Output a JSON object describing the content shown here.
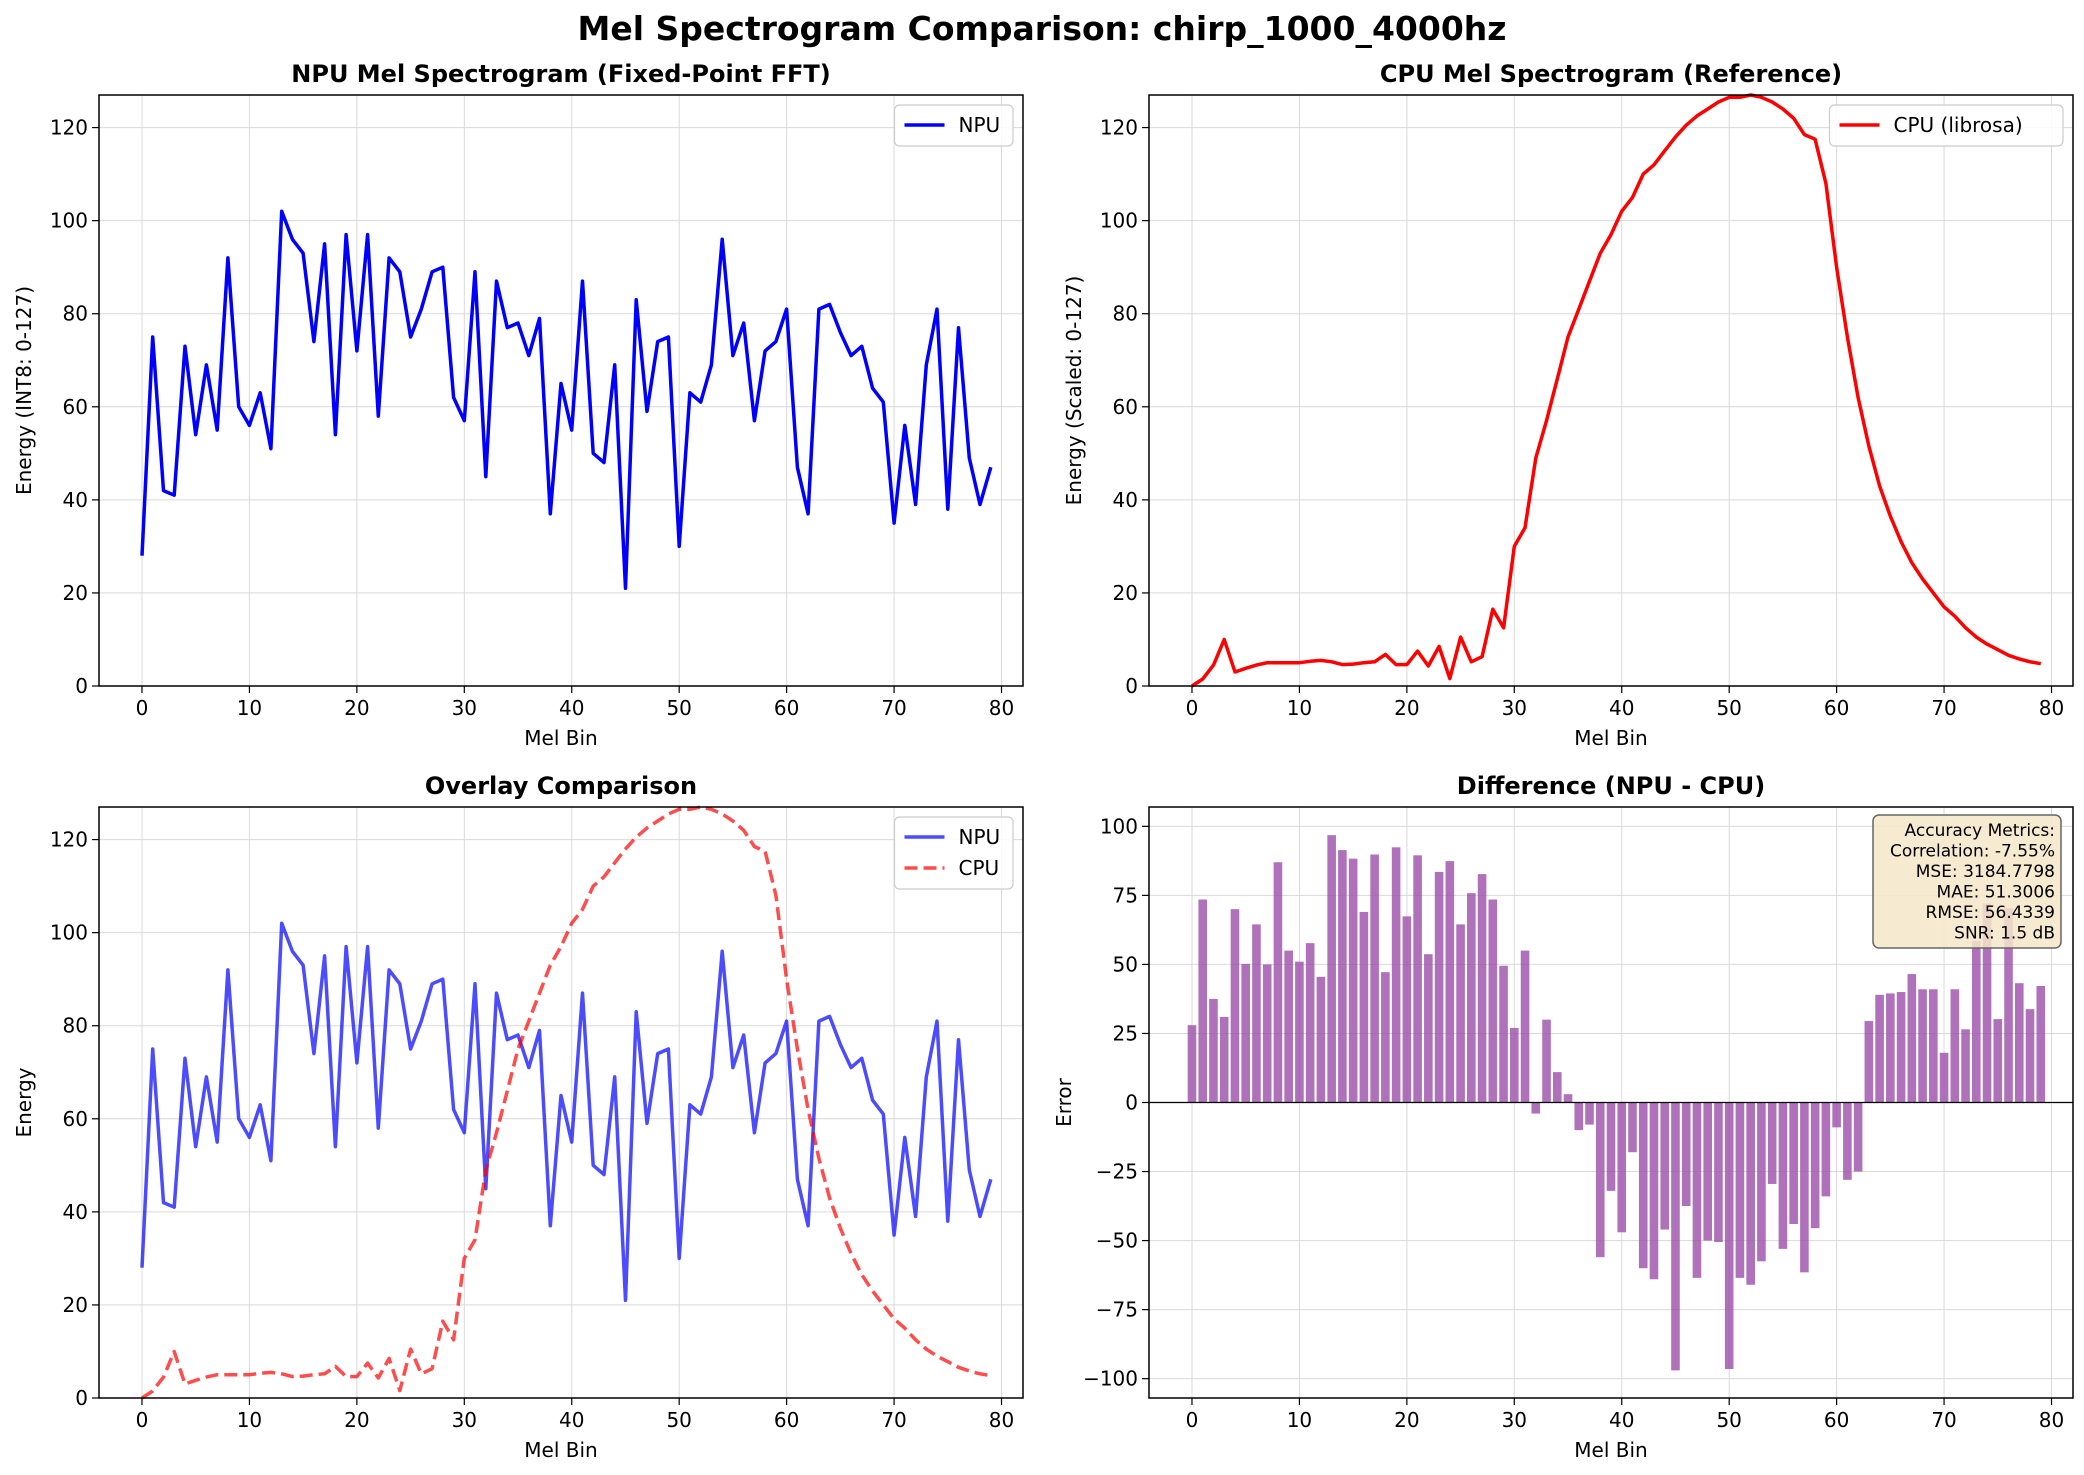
{
  "suptitle": "Mel Spectrogram Comparison: chirp_1000_4000hz",
  "colors": {
    "npu": "#0000ff",
    "cpu": "#ff0000",
    "bar": "#9b4da9",
    "grid": "#d9d9d9",
    "metrics_box": "#f5e6c8"
  },
  "chart_data": [
    {
      "type": "line",
      "title": "NPU Mel Spectrogram (Fixed-Point FFT)",
      "xlabel": "Mel Bin",
      "ylabel": "Energy (INT8: 0-127)",
      "xlim": [
        -4,
        82
      ],
      "ylim": [
        0,
        127
      ],
      "xticks": [
        0,
        10,
        20,
        30,
        40,
        50,
        60,
        70,
        80
      ],
      "yticks": [
        0,
        20,
        40,
        60,
        80,
        100,
        120
      ],
      "grid": true,
      "legend": "top-right",
      "series": [
        {
          "name": "NPU",
          "ref": "npu",
          "color": "#0000ff",
          "style": "solid",
          "alpha": 1
        }
      ]
    },
    {
      "type": "line",
      "title": "CPU Mel Spectrogram (Reference)",
      "xlabel": "Mel Bin",
      "ylabel": "Energy (Scaled: 0-127)",
      "xlim": [
        -4,
        82
      ],
      "ylim": [
        0,
        127
      ],
      "xticks": [
        0,
        10,
        20,
        30,
        40,
        50,
        60,
        70,
        80
      ],
      "yticks": [
        0,
        20,
        40,
        60,
        80,
        100,
        120
      ],
      "grid": true,
      "legend": "top-right",
      "series": [
        {
          "name": "CPU (librosa)",
          "ref": "cpu",
          "color": "#ff0000",
          "style": "solid",
          "alpha": 1
        }
      ]
    },
    {
      "type": "line",
      "title": "Overlay Comparison",
      "xlabel": "Mel Bin",
      "ylabel": "Energy",
      "xlim": [
        -4,
        82
      ],
      "ylim": [
        0,
        127
      ],
      "xticks": [
        0,
        10,
        20,
        30,
        40,
        50,
        60,
        70,
        80
      ],
      "yticks": [
        0,
        20,
        40,
        60,
        80,
        100,
        120
      ],
      "grid": true,
      "legend": "top-right",
      "series": [
        {
          "name": "NPU",
          "ref": "npu",
          "color": "#0000ff",
          "style": "solid",
          "alpha": 0.7
        },
        {
          "name": "CPU",
          "ref": "cpu",
          "color": "#ff0000",
          "style": "dashed",
          "alpha": 0.7
        }
      ]
    },
    {
      "type": "bar",
      "title": "Difference (NPU - CPU)",
      "xlabel": "Mel Bin",
      "ylabel": "Error",
      "xlim": [
        -4,
        82
      ],
      "ylim": [
        -107,
        107
      ],
      "xticks": [
        0,
        10,
        20,
        30,
        40,
        50,
        60,
        70,
        80
      ],
      "yticks": [
        -100,
        -75,
        -50,
        -25,
        0,
        25,
        50,
        75,
        100
      ],
      "grid": true,
      "series": [
        {
          "name": "Difference",
          "ref": "diff",
          "color": "#9b4da9",
          "alpha": 0.8
        }
      ],
      "metrics": [
        "Accuracy Metrics:",
        "Correlation: -7.55%",
        "MSE: 3184.7798",
        "MAE: 51.3006",
        "RMSE: 56.4339",
        "SNR: 1.5 dB"
      ]
    }
  ],
  "series_values": {
    "x": [
      0,
      1,
      2,
      3,
      4,
      5,
      6,
      7,
      8,
      9,
      10,
      11,
      12,
      13,
      14,
      15,
      16,
      17,
      18,
      19,
      20,
      21,
      22,
      23,
      24,
      25,
      26,
      27,
      28,
      29,
      30,
      31,
      32,
      33,
      34,
      35,
      36,
      37,
      38,
      39,
      40,
      41,
      42,
      43,
      44,
      45,
      46,
      47,
      48,
      49,
      50,
      51,
      52,
      53,
      54,
      55,
      56,
      57,
      58,
      59,
      60,
      61,
      62,
      63,
      64,
      65,
      66,
      67,
      68,
      69,
      70,
      71,
      72,
      73,
      74,
      75,
      76,
      77,
      78,
      79
    ],
    "npu": [
      28,
      75,
      42,
      41,
      73,
      54,
      69,
      55,
      92,
      60,
      56,
      63,
      51,
      102,
      96,
      93,
      74,
      95,
      54,
      97,
      72,
      97,
      58,
      92,
      89,
      75,
      81,
      89,
      90,
      62,
      57,
      89,
      45,
      87,
      77,
      78,
      71,
      79,
      37,
      65,
      55,
      87,
      50,
      48,
      69,
      21,
      83,
      59,
      74,
      75,
      30,
      63,
      61,
      69,
      96,
      71,
      78,
      57,
      72,
      74,
      81,
      47,
      37,
      81,
      82,
      76,
      71,
      73,
      64,
      61,
      35,
      56,
      39,
      69,
      81,
      38,
      77,
      49,
      39,
      47
    ],
    "cpu": [
      0,
      1.5,
      4.5,
      10,
      3,
      3.8,
      4.5,
      5,
      5,
      5,
      5,
      5.3,
      5.5,
      5.2,
      4.6,
      4.7,
      5,
      5.2,
      6.8,
      4.6,
      4.6,
      7.5,
      4.3,
      8.5,
      1.6,
      10.5,
      5.2,
      6.3,
      16.5,
      12.5,
      30,
      34,
      49,
      57,
      66,
      75,
      81,
      87,
      93,
      97,
      102,
      105,
      110,
      112,
      115,
      118,
      120.5,
      122.5,
      124,
      125.5,
      126.5,
      126.5,
      127,
      126.5,
      125.5,
      124,
      122,
      118.5,
      117.5,
      108,
      90,
      75,
      62,
      51.5,
      43,
      36.5,
      31,
      26.5,
      23,
      20,
      17,
      15,
      12.5,
      10.5,
      9,
      7.8,
      6.6,
      5.8,
      5.2,
      4.8
    ],
    "diff": [
      28,
      73.5,
      37.5,
      31,
      70,
      50.2,
      64.5,
      50,
      87,
      55,
      51,
      57.7,
      45.5,
      96.8,
      91.4,
      88.3,
      69,
      89.8,
      47.2,
      92.4,
      67.4,
      89.5,
      53.7,
      83.5,
      87.4,
      64.5,
      75.8,
      82.7,
      73.5,
      49.5,
      27,
      55,
      -4,
      30,
      11,
      3,
      -10,
      -8,
      -56,
      -32,
      -47,
      -18,
      -60,
      -64,
      -46,
      -97,
      -37.5,
      -63.5,
      -50,
      -50.5,
      -96.5,
      -63.5,
      -66,
      -57.5,
      -29.5,
      -53,
      -44,
      -61.5,
      -45.5,
      -34,
      -9,
      -28,
      -25,
      29.5,
      39,
      39.5,
      40,
      46.5,
      41,
      41,
      18,
      41,
      26.5,
      58.5,
      72,
      30.2,
      70.4,
      43.2,
      33.8,
      42.2
    ]
  }
}
